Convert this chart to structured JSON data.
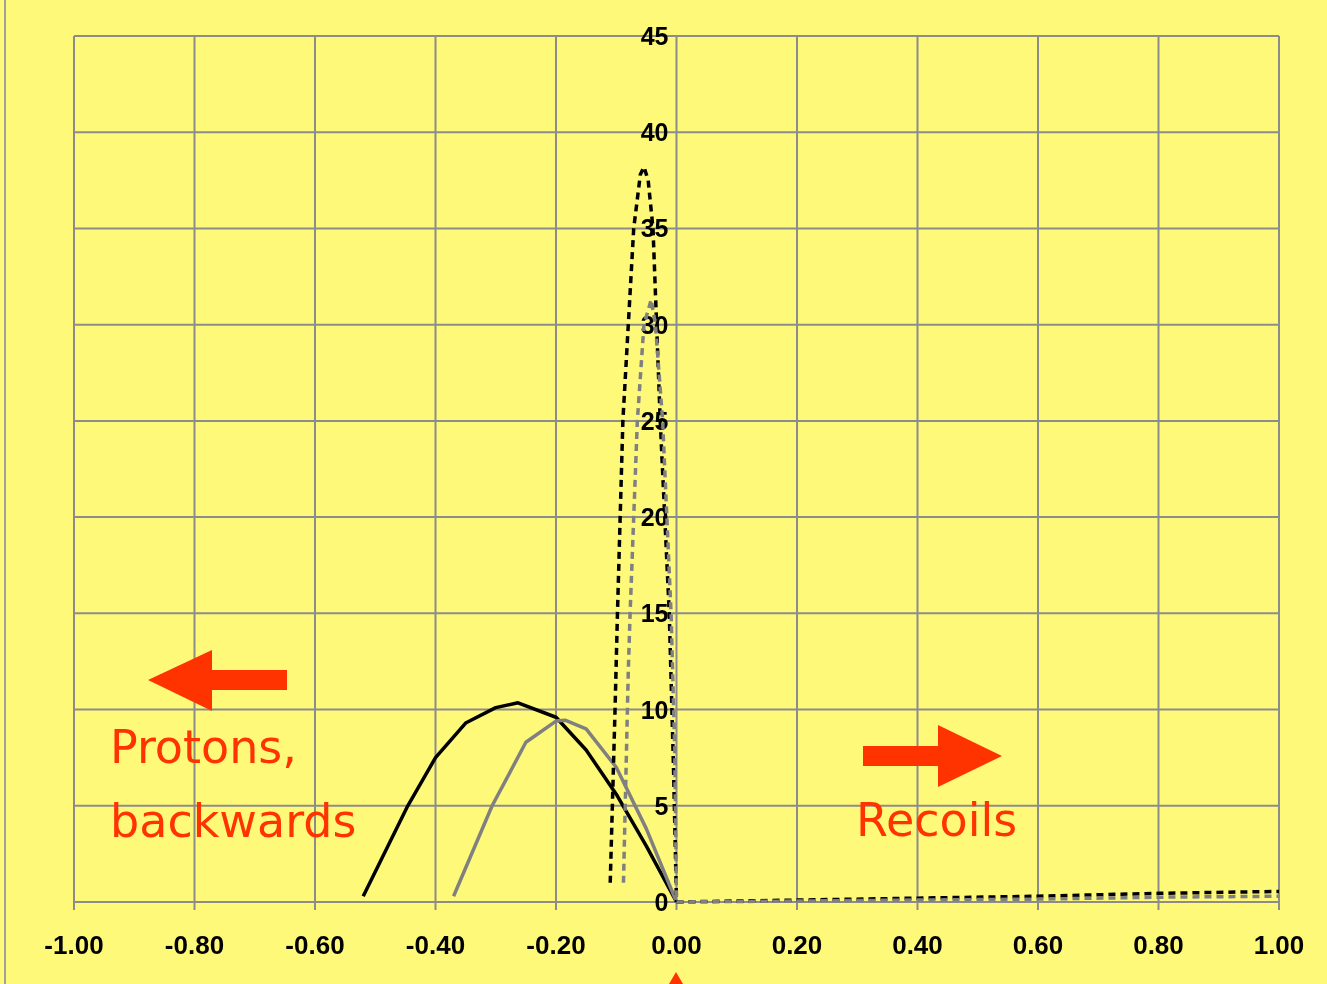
{
  "chart_data": {
    "type": "line",
    "xlim": [
      -1,
      1
    ],
    "ylim": [
      0,
      45
    ],
    "xticks": [
      {
        "value": -1,
        "label": "-1.00"
      },
      {
        "value": -0.8,
        "label": "-0.80"
      },
      {
        "value": -0.6,
        "label": "-0.60"
      },
      {
        "value": -0.4,
        "label": "-0.40"
      },
      {
        "value": -0.2,
        "label": "-0.20"
      },
      {
        "value": 0,
        "label": "0.00"
      },
      {
        "value": 0.2,
        "label": "0.20"
      },
      {
        "value": 0.4,
        "label": "0.40"
      },
      {
        "value": 0.6,
        "label": "0.60"
      },
      {
        "value": 0.8,
        "label": "0.80"
      },
      {
        "value": 1,
        "label": "1.00"
      }
    ],
    "yticks": [
      0,
      5,
      10,
      15,
      20,
      25,
      30,
      35,
      40,
      45
    ],
    "grid": true,
    "series": [
      {
        "color": "#000000",
        "line_style": "solid",
        "x": [
          -0.52,
          -0.446,
          -0.4,
          -0.35,
          -0.3,
          -0.263,
          -0.2,
          -0.15,
          -0.1,
          -0.05,
          0
        ],
        "values": [
          0.3,
          5,
          7.5,
          9.3,
          10.1,
          10.35,
          9.6,
          7.9,
          5.6,
          2.9,
          0
        ]
      },
      {
        "color": "#808080",
        "line_style": "solid",
        "x": [
          -0.37,
          -0.306,
          -0.25,
          -0.2,
          -0.185,
          -0.15,
          -0.1,
          -0.05,
          0
        ],
        "values": [
          0.3,
          5,
          8.3,
          9.4,
          9.45,
          9,
          7,
          3.8,
          0
        ]
      },
      {
        "color": "#000000",
        "line_style": "dashed",
        "x": [
          -0.11,
          -0.102,
          -0.098,
          -0.089,
          -0.071,
          -0.06,
          -0.054,
          -0.047,
          -0.039,
          -0.027,
          -0.012,
          -0.005,
          0
        ],
        "values": [
          1,
          10,
          15,
          25,
          35,
          37.8,
          38.2,
          37.5,
          35,
          25,
          15,
          7,
          0
        ]
      },
      {
        "color": "#808080",
        "line_style": "dashed",
        "x": [
          -0.088,
          -0.08,
          -0.077,
          -0.065,
          -0.054,
          -0.042,
          -0.035,
          -0.023,
          -0.009,
          -0.003,
          0
        ],
        "values": [
          1,
          12,
          15,
          25,
          30,
          31.3,
          30,
          25,
          15,
          8,
          0
        ]
      },
      {
        "color": "#000000",
        "line_style": "dashed",
        "x": [
          0,
          0.2,
          0.4,
          0.6,
          0.8,
          1
        ],
        "values": [
          0,
          0.1,
          0.2,
          0.3,
          0.45,
          0.55
        ]
      },
      {
        "color": "#808080",
        "line_style": "dashed",
        "x": [
          0,
          0.2,
          0.4,
          0.6,
          0.8,
          1
        ],
        "values": [
          0,
          0.05,
          0.1,
          0.15,
          0.25,
          0.3
        ]
      }
    ],
    "annotations": [
      "Protons,\nbackwards",
      "Recoils"
    ]
  }
}
